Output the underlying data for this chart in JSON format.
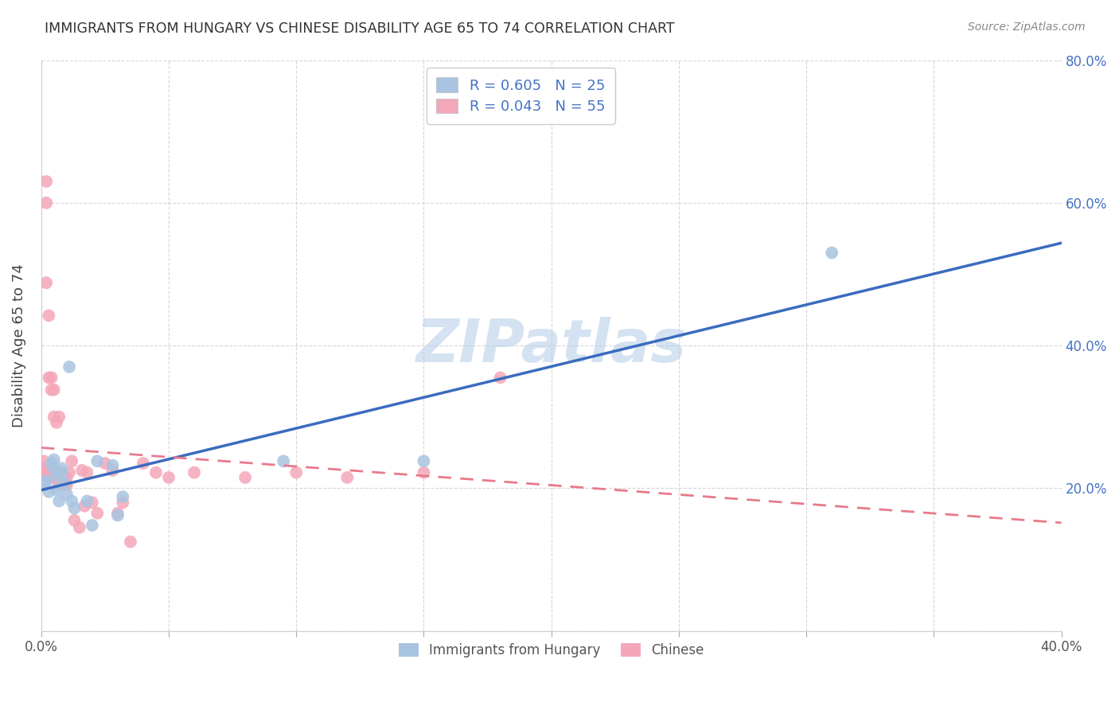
{
  "title": "IMMIGRANTS FROM HUNGARY VS CHINESE DISABILITY AGE 65 TO 74 CORRELATION CHART",
  "source": "Source: ZipAtlas.com",
  "ylabel": "Disability Age 65 to 74",
  "xlim": [
    0.0,
    0.4
  ],
  "ylim": [
    0.0,
    0.8
  ],
  "yticks": [
    0.0,
    0.2,
    0.4,
    0.6,
    0.8
  ],
  "ytick_labels": [
    "",
    "20.0%",
    "40.0%",
    "60.0%",
    "80.0%"
  ],
  "hungary_color": "#a8c4e0",
  "chinese_color": "#f4a7b9",
  "hungary_line_color": "#3a6bbf",
  "chinese_line_color": "#e87a8a",
  "hungary_R": 0.605,
  "hungary_N": 25,
  "chinese_R": 0.043,
  "chinese_N": 55,
  "watermark": "ZIPatlas",
  "watermark_color": "#b8d0e8",
  "hungary_x": [
    0.001,
    0.002,
    0.003,
    0.004,
    0.005,
    0.005,
    0.006,
    0.006,
    0.007,
    0.008,
    0.008,
    0.009,
    0.01,
    0.011,
    0.012,
    0.013,
    0.018,
    0.02,
    0.022,
    0.028,
    0.03,
    0.032,
    0.095,
    0.15,
    0.31
  ],
  "hungary_y": [
    0.205,
    0.21,
    0.195,
    0.235,
    0.228,
    0.24,
    0.218,
    0.198,
    0.182,
    0.228,
    0.222,
    0.208,
    0.192,
    0.37,
    0.182,
    0.172,
    0.182,
    0.148,
    0.238,
    0.232,
    0.162,
    0.188,
    0.238,
    0.238,
    0.53
  ],
  "chinese_x": [
    0.001,
    0.001,
    0.001,
    0.002,
    0.002,
    0.002,
    0.002,
    0.003,
    0.003,
    0.003,
    0.003,
    0.004,
    0.004,
    0.004,
    0.004,
    0.004,
    0.005,
    0.005,
    0.005,
    0.005,
    0.006,
    0.006,
    0.006,
    0.007,
    0.007,
    0.007,
    0.008,
    0.008,
    0.009,
    0.009,
    0.01,
    0.01,
    0.011,
    0.012,
    0.013,
    0.015,
    0.016,
    0.017,
    0.018,
    0.02,
    0.022,
    0.025,
    0.028,
    0.03,
    0.032,
    0.035,
    0.04,
    0.045,
    0.05,
    0.06,
    0.08,
    0.1,
    0.12,
    0.15,
    0.18
  ],
  "chinese_y": [
    0.228,
    0.238,
    0.222,
    0.63,
    0.6,
    0.222,
    0.488,
    0.442,
    0.222,
    0.218,
    0.355,
    0.338,
    0.225,
    0.222,
    0.215,
    0.355,
    0.338,
    0.222,
    0.215,
    0.3,
    0.292,
    0.222,
    0.222,
    0.215,
    0.205,
    0.3,
    0.215,
    0.205,
    0.215,
    0.205,
    0.215,
    0.205,
    0.222,
    0.238,
    0.155,
    0.145,
    0.225,
    0.175,
    0.222,
    0.18,
    0.165,
    0.235,
    0.225,
    0.165,
    0.18,
    0.125,
    0.235,
    0.222,
    0.215,
    0.222,
    0.215,
    0.222,
    0.215,
    0.222,
    0.355
  ]
}
